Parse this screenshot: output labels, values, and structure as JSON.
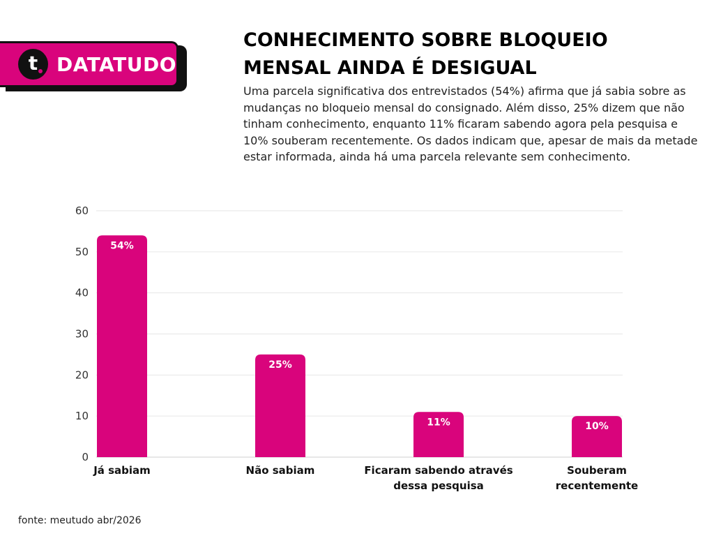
{
  "brand": {
    "name": "DATATUDO",
    "logo_letter": "t",
    "logo_icon": "datatudo-logo-icon"
  },
  "title": "CONHECIMENTO SOBRE BLOQUEIO MENSAL AINDA É DESIGUAL",
  "subtitle": "Uma parcela significativa dos entrevistados (54%) afirma que já sabia sobre as mudanças no bloqueio mensal do consignado. Além disso, 25% dizem que não tinham conhecimento, enquanto 11% ficaram sabendo agora pela pesquisa e 10% souberam recentemente. Os dados indicam que, apesar de mais da metade estar informada, ainda há uma parcela relevante sem conhecimento.",
  "footer": "fonte: meutudo abr/2026",
  "colors": {
    "accent": "#d9047c",
    "grid": "#e6e6e6"
  },
  "chart_data": {
    "type": "bar",
    "categories": [
      [
        "Já sabiam"
      ],
      [
        "Não sabiam"
      ],
      [
        "Ficaram sabendo através",
        "dessa pesquisa"
      ],
      [
        "Souberam",
        "recentemente"
      ]
    ],
    "values": [
      54,
      25,
      11,
      10
    ],
    "data_labels": [
      "54%",
      "25%",
      "11%",
      "10%"
    ],
    "ylim": [
      0,
      60
    ],
    "yticks": [
      0,
      10,
      20,
      30,
      40,
      50,
      60
    ],
    "grid": true,
    "xlabel": "",
    "ylabel": ""
  }
}
